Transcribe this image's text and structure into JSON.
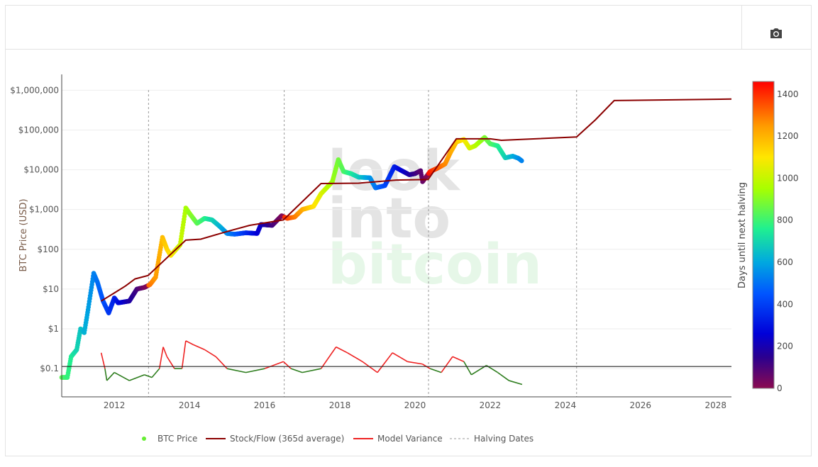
{
  "toolbar": {
    "camera_icon": "camera-icon"
  },
  "chart_data": {
    "type": "scatter",
    "ylabel": "BTC Price (USD)",
    "yscale": "log",
    "ylim": [
      0.0195,
      2500000
    ],
    "xlim": [
      2010.6,
      2028.42
    ],
    "grid": true,
    "legend_position": "bottom",
    "y_ticks": [
      {
        "v": 0.1,
        "label": "$0.1"
      },
      {
        "v": 1,
        "label": "$1"
      },
      {
        "v": 10,
        "label": "$10"
      },
      {
        "v": 100,
        "label": "$100"
      },
      {
        "v": 1000,
        "label": "$1,000"
      },
      {
        "v": 10000,
        "label": "$10,000"
      },
      {
        "v": 100000,
        "label": "$100,000"
      },
      {
        "v": 1000000,
        "label": "$1,000,000"
      }
    ],
    "x_ticks": [
      "2012",
      "2014",
      "2016",
      "2018",
      "2020",
      "2022",
      "2024",
      "2026",
      "2028"
    ],
    "halving_dates": [
      2012.91,
      2016.52,
      2020.36,
      2024.3
    ],
    "variance_reference": 0.113,
    "colorbar": {
      "title": "Days until next halving",
      "ticks": [
        0,
        200,
        400,
        600,
        800,
        1000,
        1200,
        1400
      ],
      "range": [
        0,
        1460
      ],
      "stops": [
        [
          0,
          "#8b0a50"
        ],
        [
          150,
          "#2a0090"
        ],
        [
          260,
          "#0000d8"
        ],
        [
          450,
          "#0055ff"
        ],
        [
          600,
          "#00a8e0"
        ],
        [
          760,
          "#20f090"
        ],
        [
          950,
          "#a8ff00"
        ],
        [
          1100,
          "#ffe600"
        ],
        [
          1250,
          "#ff9a00"
        ],
        [
          1460,
          "#ff0000"
        ]
      ]
    },
    "series": [
      {
        "name": "BTC Price",
        "color": "#66ee33",
        "points": [
          [
            2010.6,
            0.06
          ],
          [
            2010.75,
            0.06
          ],
          [
            2010.85,
            0.2
          ],
          [
            2011.0,
            0.3
          ],
          [
            2011.1,
            1
          ],
          [
            2011.2,
            0.8
          ],
          [
            2011.3,
            3
          ],
          [
            2011.45,
            25
          ],
          [
            2011.55,
            15
          ],
          [
            2011.7,
            5
          ],
          [
            2011.85,
            2.5
          ],
          [
            2012.0,
            6
          ],
          [
            2012.1,
            4.5
          ],
          [
            2012.4,
            5
          ],
          [
            2012.6,
            10
          ],
          [
            2012.8,
            11
          ],
          [
            2012.95,
            13
          ],
          [
            2013.1,
            20
          ],
          [
            2013.28,
            200
          ],
          [
            2013.4,
            100
          ],
          [
            2013.5,
            70
          ],
          [
            2013.75,
            130
          ],
          [
            2013.9,
            1100
          ],
          [
            2014.0,
            800
          ],
          [
            2014.2,
            450
          ],
          [
            2014.4,
            600
          ],
          [
            2014.6,
            550
          ],
          [
            2014.8,
            380
          ],
          [
            2015.0,
            250
          ],
          [
            2015.2,
            240
          ],
          [
            2015.5,
            260
          ],
          [
            2015.8,
            250
          ],
          [
            2015.9,
            420
          ],
          [
            2016.2,
            400
          ],
          [
            2016.45,
            700
          ],
          [
            2016.6,
            600
          ],
          [
            2016.8,
            650
          ],
          [
            2017.0,
            1000
          ],
          [
            2017.3,
            1200
          ],
          [
            2017.5,
            2500
          ],
          [
            2017.8,
            5000
          ],
          [
            2017.96,
            18000
          ],
          [
            2018.1,
            9000
          ],
          [
            2018.3,
            8000
          ],
          [
            2018.5,
            6500
          ],
          [
            2018.8,
            6300
          ],
          [
            2018.95,
            3500
          ],
          [
            2019.2,
            4000
          ],
          [
            2019.45,
            12000
          ],
          [
            2019.6,
            10000
          ],
          [
            2019.85,
            7500
          ],
          [
            2020.0,
            8000
          ],
          [
            2020.15,
            9500
          ],
          [
            2020.2,
            5000
          ],
          [
            2020.4,
            9000
          ],
          [
            2020.6,
            11000
          ],
          [
            2020.8,
            14000
          ],
          [
            2020.95,
            28000
          ],
          [
            2021.1,
            50000
          ],
          [
            2021.3,
            58000
          ],
          [
            2021.45,
            35000
          ],
          [
            2021.6,
            40000
          ],
          [
            2021.85,
            65000
          ],
          [
            2022.0,
            45000
          ],
          [
            2022.2,
            40000
          ],
          [
            2022.4,
            20000
          ],
          [
            2022.6,
            22000
          ],
          [
            2022.75,
            19500
          ],
          [
            2022.85,
            16500
          ]
        ]
      },
      {
        "name": "Stock/Flow (365d average)",
        "color": "#8b0000",
        "points": [
          [
            2011.65,
            5
          ],
          [
            2012.0,
            8
          ],
          [
            2012.3,
            12
          ],
          [
            2012.55,
            18
          ],
          [
            2012.9,
            22
          ],
          [
            2013.9,
            170
          ],
          [
            2014.3,
            180
          ],
          [
            2015.0,
            280
          ],
          [
            2015.6,
            400
          ],
          [
            2016.5,
            550
          ],
          [
            2017.5,
            4500
          ],
          [
            2018.5,
            4600
          ],
          [
            2019.5,
            5500
          ],
          [
            2020.35,
            5700
          ],
          [
            2021.1,
            60000
          ],
          [
            2022.0,
            60000
          ],
          [
            2022.3,
            55000
          ],
          [
            2024.3,
            67000
          ],
          [
            2024.8,
            180000
          ],
          [
            2025.3,
            550000
          ],
          [
            2028.42,
            600000
          ]
        ]
      },
      {
        "name": "Model Variance",
        "color": "#ee2222",
        "below_color": "#2e7d1e",
        "points": [
          [
            2011.65,
            0.25
          ],
          [
            2011.75,
            0.1
          ],
          [
            2011.8,
            0.05
          ],
          [
            2012.0,
            0.08
          ],
          [
            2012.4,
            0.05
          ],
          [
            2012.8,
            0.07
          ],
          [
            2013.0,
            0.06
          ],
          [
            2013.2,
            0.1
          ],
          [
            2013.3,
            0.35
          ],
          [
            2013.4,
            0.2
          ],
          [
            2013.6,
            0.1
          ],
          [
            2013.8,
            0.1
          ],
          [
            2013.9,
            0.5
          ],
          [
            2014.1,
            0.4
          ],
          [
            2014.4,
            0.3
          ],
          [
            2014.7,
            0.2
          ],
          [
            2015.0,
            0.1
          ],
          [
            2015.5,
            0.08
          ],
          [
            2016.0,
            0.1
          ],
          [
            2016.5,
            0.15
          ],
          [
            2016.7,
            0.1
          ],
          [
            2017.0,
            0.08
          ],
          [
            2017.5,
            0.1
          ],
          [
            2017.9,
            0.35
          ],
          [
            2018.2,
            0.25
          ],
          [
            2018.6,
            0.15
          ],
          [
            2019.0,
            0.08
          ],
          [
            2019.4,
            0.25
          ],
          [
            2019.8,
            0.15
          ],
          [
            2020.2,
            0.13
          ],
          [
            2020.4,
            0.1
          ],
          [
            2020.7,
            0.08
          ],
          [
            2021.0,
            0.2
          ],
          [
            2021.3,
            0.15
          ],
          [
            2021.5,
            0.07
          ],
          [
            2021.9,
            0.12
          ],
          [
            2022.2,
            0.08
          ],
          [
            2022.5,
            0.05
          ],
          [
            2022.85,
            0.04
          ]
        ]
      },
      {
        "name": "Halving Dates",
        "color": "#999999"
      }
    ],
    "watermark": [
      "look",
      "into",
      "bitcoin"
    ]
  }
}
